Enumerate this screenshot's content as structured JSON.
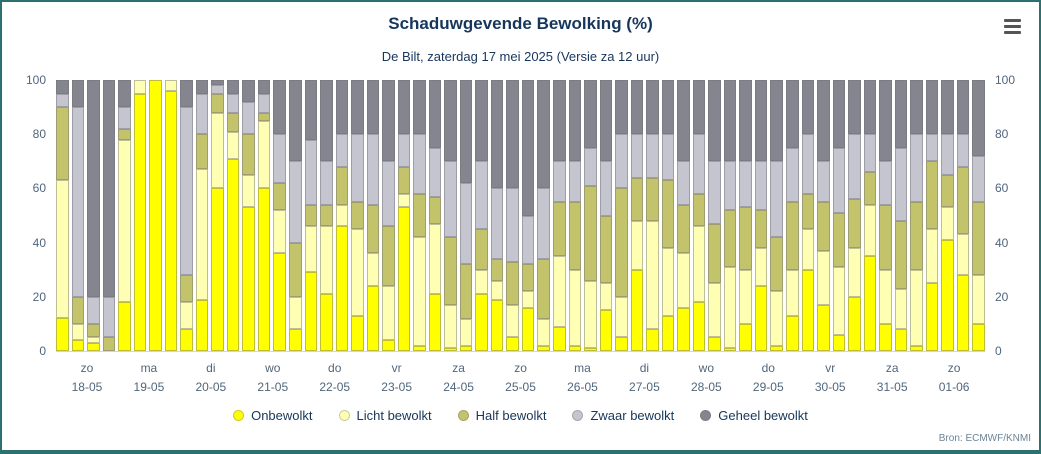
{
  "header": {
    "title": "Schaduwgevende Bewolking (%)",
    "subtitle": "De Bilt, zaterdag 17 mei 2025 (Versie za 12 uur)",
    "menu_icon": "hamburger-menu"
  },
  "footer": {
    "source": "Bron: ECMWF/KNMI"
  },
  "chart_data": {
    "type": "bar",
    "stacked": true,
    "stacking": "percent",
    "title": "Schaduwgevende Bewolking (%)",
    "subtitle": "De Bilt, zaterdag 17 mei 2025 (Versie za 12 uur)",
    "ylim": [
      0,
      100
    ],
    "yticks": [
      0,
      20,
      40,
      60,
      80,
      100
    ],
    "grid": false,
    "legend_position": "bottom",
    "bars_per_day": 4,
    "days": [
      {
        "weekday": "zo",
        "date": "18-05"
      },
      {
        "weekday": "ma",
        "date": "19-05"
      },
      {
        "weekday": "di",
        "date": "20-05"
      },
      {
        "weekday": "wo",
        "date": "21-05"
      },
      {
        "weekday": "do",
        "date": "22-05"
      },
      {
        "weekday": "vr",
        "date": "23-05"
      },
      {
        "weekday": "za",
        "date": "24-05"
      },
      {
        "weekday": "zo",
        "date": "25-05"
      },
      {
        "weekday": "ma",
        "date": "26-05"
      },
      {
        "weekday": "di",
        "date": "27-05"
      },
      {
        "weekday": "wo",
        "date": "28-05"
      },
      {
        "weekday": "do",
        "date": "29-05"
      },
      {
        "weekday": "vr",
        "date": "30-05"
      },
      {
        "weekday": "za",
        "date": "31-05"
      },
      {
        "weekday": "zo",
        "date": "01-06"
      }
    ],
    "series": [
      {
        "name": "Onbewolkt",
        "color": "#ffff00",
        "values": [
          12,
          4,
          3,
          0,
          18,
          95,
          100,
          96,
          8,
          19,
          60,
          71,
          53,
          60,
          36,
          8,
          29,
          21,
          46,
          13,
          24,
          4,
          53,
          2,
          21,
          1,
          2,
          21,
          19,
          5,
          16,
          2,
          9,
          2,
          1,
          15,
          5,
          30,
          8,
          13,
          16,
          18,
          5,
          1,
          10,
          24,
          2,
          13,
          30,
          17,
          6,
          20,
          35,
          10,
          8,
          2,
          25,
          41,
          28,
          10
        ]
      },
      {
        "name": "Licht bewolkt",
        "color": "#ffffb3",
        "values": [
          51,
          6,
          2,
          0,
          60,
          5,
          0,
          4,
          10,
          48,
          28,
          10,
          12,
          25,
          16,
          12,
          17,
          25,
          8,
          32,
          12,
          20,
          5,
          40,
          26,
          16,
          10,
          9,
          7,
          12,
          6,
          10,
          26,
          28,
          25,
          10,
          15,
          18,
          40,
          25,
          20,
          28,
          20,
          30,
          20,
          14,
          20,
          17,
          15,
          20,
          25,
          18,
          19,
          20,
          15,
          28,
          20,
          12,
          15,
          18
        ]
      },
      {
        "name": "Half bewolkt",
        "color": "#c3c36b",
        "values": [
          27,
          10,
          5,
          5,
          4,
          0,
          0,
          0,
          10,
          13,
          7,
          7,
          15,
          3,
          10,
          20,
          8,
          8,
          14,
          10,
          18,
          22,
          10,
          16,
          10,
          25,
          20,
          15,
          8,
          16,
          10,
          22,
          20,
          25,
          35,
          25,
          40,
          16,
          16,
          25,
          18,
          12,
          22,
          21,
          23,
          14,
          20,
          25,
          13,
          18,
          20,
          18,
          12,
          24,
          25,
          25,
          25,
          12,
          25,
          27
        ]
      },
      {
        "name": "Zwaar bewolkt",
        "color": "#c5c5cf",
        "values": [
          5,
          70,
          10,
          15,
          8,
          0,
          0,
          0,
          62,
          15,
          3,
          7,
          12,
          7,
          18,
          30,
          24,
          16,
          12,
          25,
          26,
          24,
          12,
          22,
          18,
          28,
          30,
          25,
          26,
          27,
          18,
          26,
          15,
          15,
          14,
          20,
          20,
          16,
          16,
          17,
          16,
          22,
          23,
          18,
          17,
          18,
          28,
          20,
          22,
          15,
          24,
          24,
          14,
          16,
          27,
          25,
          10,
          15,
          12,
          17
        ]
      },
      {
        "name": "Geheel bewolkt",
        "color": "#85858f",
        "values": [
          5,
          10,
          80,
          80,
          10,
          0,
          0,
          0,
          10,
          5,
          2,
          5,
          8,
          5,
          20,
          30,
          22,
          30,
          20,
          20,
          20,
          30,
          20,
          20,
          25,
          30,
          38,
          30,
          40,
          40,
          50,
          40,
          30,
          30,
          25,
          30,
          20,
          20,
          20,
          20,
          30,
          20,
          30,
          30,
          30,
          30,
          30,
          25,
          20,
          30,
          25,
          20,
          20,
          30,
          25,
          20,
          20,
          20,
          20,
          28
        ]
      }
    ]
  }
}
